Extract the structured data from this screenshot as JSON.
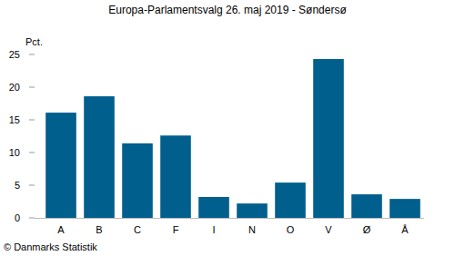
{
  "chart_data": {
    "type": "bar",
    "title": "Europa-Parlamentsvalg 26. maj 2019 - Søndersø",
    "y_label": "Pct.",
    "categories": [
      "A",
      "B",
      "C",
      "F",
      "I",
      "N",
      "O",
      "V",
      "Ø",
      "Å"
    ],
    "values": [
      16.1,
      18.6,
      11.4,
      12.6,
      3.2,
      2.2,
      5.4,
      24.3,
      3.6,
      2.9
    ],
    "color": "#005f8d",
    "ylim": [
      0,
      25
    ],
    "yticks": [
      0,
      5,
      10,
      15,
      20,
      25
    ],
    "grid": false,
    "annotations": [
      "© Danmarks Statistik"
    ]
  }
}
